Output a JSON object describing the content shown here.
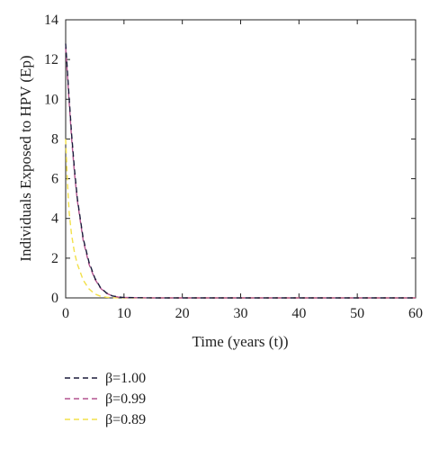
{
  "chart_data": {
    "type": "line",
    "title": "",
    "xlabel": "Time (years (t))",
    "ylabel": "Individuals Exposed to HPV (Ep)",
    "xlim": [
      0,
      60
    ],
    "ylim": [
      0,
      14
    ],
    "xticks": [
      0,
      10,
      20,
      30,
      40,
      50,
      60
    ],
    "yticks": [
      0,
      2,
      4,
      6,
      8,
      10,
      12,
      14
    ],
    "grid": false,
    "legend_position": "below",
    "series": [
      {
        "name": "β=1.00",
        "color": "#1a1a3a",
        "dash": "dashed",
        "x": [
          0,
          0.5,
          1,
          1.5,
          2,
          3,
          4,
          5,
          6,
          7,
          8,
          9,
          10,
          15,
          20,
          30,
          40,
          50,
          60
        ],
        "y": [
          12.8,
          10.5,
          8.3,
          6.5,
          5.0,
          3.0,
          1.8,
          1.0,
          0.5,
          0.25,
          0.1,
          0.05,
          0.02,
          0,
          0,
          0,
          0,
          0,
          0
        ]
      },
      {
        "name": "β=0.99",
        "color": "#b3548f",
        "dash": "dashed",
        "x": [
          0,
          0.5,
          1,
          1.5,
          2,
          3,
          4,
          5,
          6,
          7,
          8,
          9,
          10,
          15,
          20,
          30,
          40,
          50,
          60
        ],
        "y": [
          12.6,
          10.3,
          8.1,
          6.3,
          4.9,
          2.9,
          1.7,
          0.95,
          0.48,
          0.23,
          0.1,
          0.04,
          0.02,
          0,
          0,
          0,
          0,
          0,
          0
        ]
      },
      {
        "name": "β=0.89",
        "color": "#f2e04a",
        "dash": "dashed",
        "x": [
          0,
          0.3,
          0.6,
          1,
          1.5,
          2,
          3,
          4,
          5,
          6,
          7,
          8,
          10,
          15,
          20,
          30,
          40,
          50,
          60
        ],
        "y": [
          8.0,
          5.8,
          4.3,
          3.2,
          2.3,
          1.7,
          0.9,
          0.45,
          0.2,
          0.08,
          0.03,
          0.01,
          0,
          0,
          0,
          0,
          0,
          0,
          0
        ]
      }
    ]
  }
}
